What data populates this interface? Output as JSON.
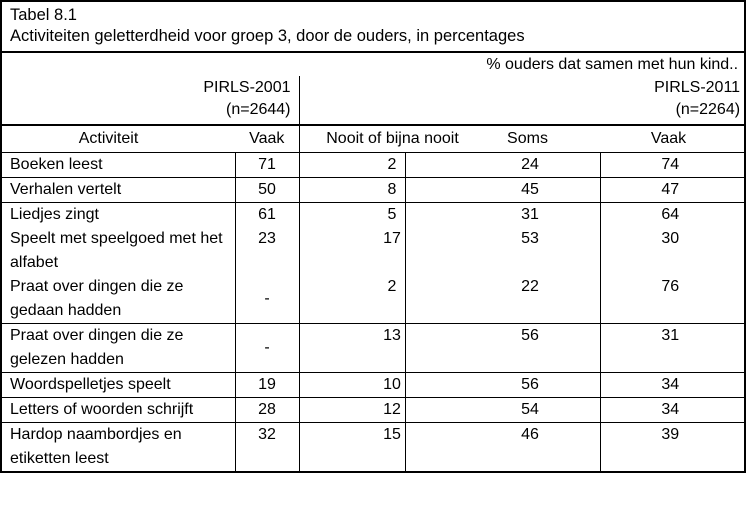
{
  "title": "Tabel 8.1",
  "subtitle": "Activiteiten geletterdheid voor groep 3, door de ouders, in percentages",
  "banner": "% ouders dat samen met hun kind..",
  "survey_2001": {
    "name": "PIRLS-2001",
    "n": "(n=2644)"
  },
  "survey_2011": {
    "name": "PIRLS-2011",
    "n": "(n=2264)"
  },
  "columns": {
    "activity": "Activiteit",
    "vaak_2001": "Vaak",
    "nooit": "Nooit of bijna nooit",
    "soms": "Soms",
    "vaak_2011": "Vaak"
  },
  "rows": [
    {
      "activity": "Boeken leest",
      "vaak_2001": "71",
      "nooit": "2",
      "soms": "24",
      "vaak_2011": "74"
    },
    {
      "activity": "Verhalen vertelt",
      "vaak_2001": "50",
      "nooit": "8",
      "soms": "45",
      "vaak_2011": "47"
    },
    {
      "activity": "Liedjes zingt",
      "vaak_2001": "61",
      "nooit": "5",
      "soms": "31",
      "vaak_2011": "64",
      "joined_with_next": true
    },
    {
      "activity": "Speelt met speelgoed met het alfabet",
      "vaak_2001": "23",
      "nooit": "17",
      "soms": "53",
      "vaak_2011": "30",
      "joined_with_next": true
    },
    {
      "activity": "Praat over dingen die ze gedaan hadden",
      "vaak_2001": "-",
      "nooit": "2",
      "soms": "22",
      "vaak_2011": "76"
    },
    {
      "activity": "Praat over dingen die ze gelezen hadden",
      "vaak_2001": "-",
      "nooit": "13",
      "soms": "56",
      "vaak_2011": "31"
    },
    {
      "activity": "Woordspelletjes speelt",
      "vaak_2001": "19",
      "nooit": "10",
      "soms": "56",
      "vaak_2011": "34"
    },
    {
      "activity": "Letters of woorden schrijft",
      "vaak_2001": "28",
      "nooit": "12",
      "soms": "54",
      "vaak_2011": "34"
    },
    {
      "activity": "Hardop naambordjes en etiketten leest",
      "vaak_2001": "32",
      "nooit": "15",
      "soms": "46",
      "vaak_2011": "39"
    }
  ],
  "chart_data": {
    "type": "table",
    "title": "Tabel 8.1 — Activiteiten geletterdheid voor groep 3, door de ouders, in percentages",
    "columns": [
      "Activiteit",
      "PIRLS-2001 (n=2644) Vaak",
      "PIRLS-2011 (n=2264) Nooit of bijna nooit",
      "PIRLS-2011 Soms",
      "PIRLS-2011 Vaak"
    ],
    "rows": [
      [
        "Boeken leest",
        "71",
        "2",
        "24",
        "74"
      ],
      [
        "Verhalen vertelt",
        "50",
        "8",
        "45",
        "47"
      ],
      [
        "Liedjes zingt",
        "61",
        "5",
        "31",
        "64"
      ],
      [
        "Speelt met speelgoed met het alfabet",
        "23",
        "17",
        "53",
        "30"
      ],
      [
        "Praat over dingen die ze gedaan hadden",
        "-",
        "2",
        "22",
        "76"
      ],
      [
        "Praat over dingen die ze gelezen hadden",
        "-",
        "13",
        "56",
        "31"
      ],
      [
        "Woordspelletjes speelt",
        "19",
        "10",
        "56",
        "34"
      ],
      [
        "Letters of woorden schrijft",
        "28",
        "12",
        "54",
        "34"
      ],
      [
        "Hardop naambordjes en etiketten leest",
        "32",
        "15",
        "46",
        "39"
      ]
    ]
  }
}
